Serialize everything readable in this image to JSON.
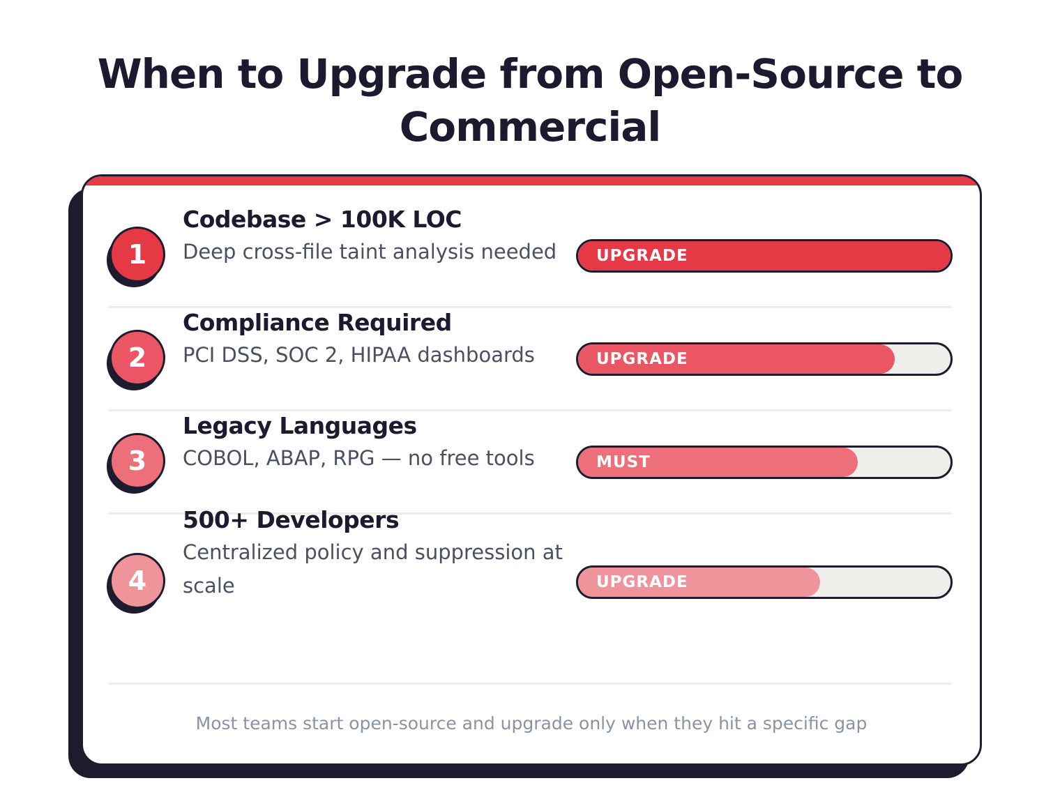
{
  "title": [
    "When to Upgrade from Open-Source to",
    "Commercial"
  ],
  "items": [
    {
      "number": "1",
      "name": "Codebase > 100K LOC",
      "description": "Deep cross-file taint analysis needed",
      "tag": "UPGRADE",
      "level": 100,
      "color": "#e63946"
    },
    {
      "number": "2",
      "name": "Compliance Required",
      "description": "PCI DSS, SOC 2, HIPAA dashboards",
      "tag": "UPGRADE",
      "level": 85,
      "color": "#ea5664"
    },
    {
      "number": "3",
      "name": "Legacy Languages",
      "description": "COBOL, ABAP, RPG — no free tools",
      "tag": "MUST",
      "level": 75,
      "color": "#ed6f7a"
    },
    {
      "number": "4",
      "name": "500+ Developers",
      "description": "Centralized policy and suppression at scale",
      "tag": "UPGRADE",
      "level": 65,
      "color": "#f0949b"
    }
  ],
  "footer": "Most teams start open-source and upgrade only when they hit a specific gap"
}
